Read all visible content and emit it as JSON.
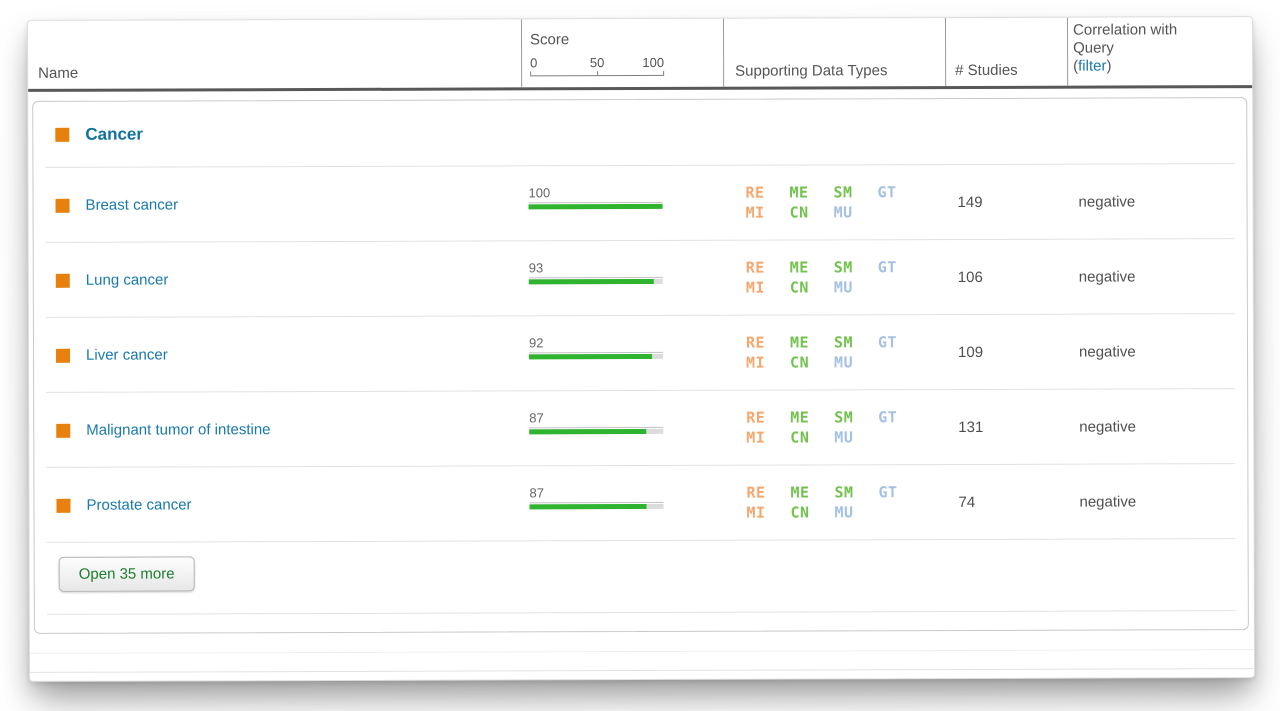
{
  "header": {
    "name_label": "Name",
    "score": {
      "label": "Score",
      "tick_0": "0",
      "tick_50": "50",
      "tick_100": "100"
    },
    "supporting_label": "Supporting Data Types",
    "studies_label": "# Studies",
    "correlation": {
      "line1": "Correlation with",
      "line2": "Query",
      "open_paren": "(",
      "filter_link": "filter",
      "close_paren": ")"
    }
  },
  "group": {
    "label": "Cancer"
  },
  "rows": [
    {
      "name": "Breast cancer",
      "score_label": "100",
      "score_value": 100,
      "studies": "149",
      "correlation": "negative"
    },
    {
      "name": "Lung cancer",
      "score_label": "93",
      "score_value": 93,
      "studies": "106",
      "correlation": "negative"
    },
    {
      "name": "Liver cancer",
      "score_label": "92",
      "score_value": 92,
      "studies": "109",
      "correlation": "negative"
    },
    {
      "name": "Malignant tumor of intestine",
      "score_label": "87",
      "score_value": 87,
      "studies": "131",
      "correlation": "negative"
    },
    {
      "name": "Prostate cancer",
      "score_label": "87",
      "score_value": 87,
      "studies": "74",
      "correlation": "negative"
    }
  ],
  "data_types": {
    "line1": [
      {
        "code": "RE",
        "color": "#f5a76e"
      },
      {
        "code": "ME",
        "color": "#72c24e"
      },
      {
        "code": "SM",
        "color": "#72c24e"
      },
      {
        "code": "GT",
        "color": "#a4c1e4"
      }
    ],
    "line2": [
      {
        "code": "MI",
        "color": "#f5a76e"
      },
      {
        "code": "CN",
        "color": "#72c24e"
      },
      {
        "code": "MU",
        "color": "#a4c1e4"
      }
    ]
  },
  "footer": {
    "open_more_button": "Open 35 more"
  },
  "colors": {
    "accent_orange": "#e8800d",
    "score_bar_green": "#2eb42e",
    "score_track": "#dcdcdc",
    "link_blue": "#1879ad",
    "group_heading": "#0f72a0",
    "filter_link": "#1879ad",
    "button_text_green": "#1e7d31",
    "header_text": "#555555",
    "value_text": "#4f4f4f"
  }
}
